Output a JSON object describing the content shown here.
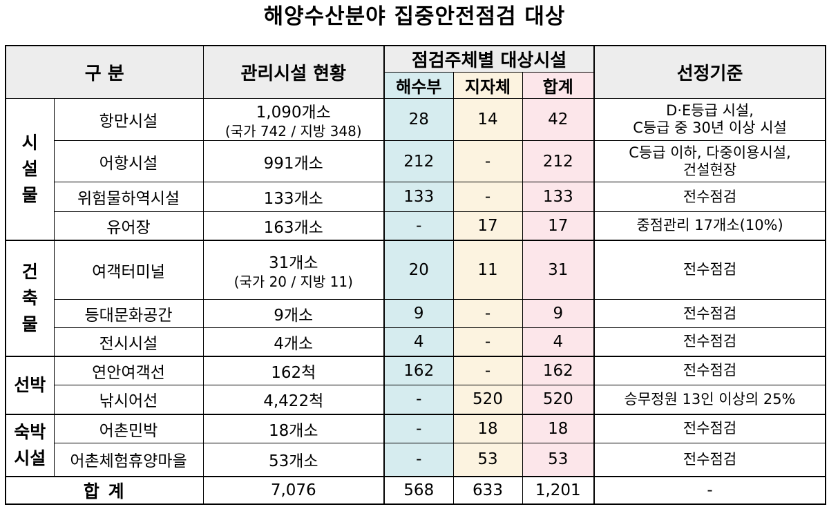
{
  "title": "해양수산분야 집중안전점검 대상",
  "header": {
    "category": "구 분",
    "facilities": "관리시설 현황",
    "inspector_group": "점검주체별 대상시설",
    "mof": "해수부",
    "local": "지자체",
    "sum": "합계",
    "criteria": "선정기준"
  },
  "groups": [
    {
      "label_lines": [
        "시",
        "설",
        "물"
      ],
      "rows": [
        {
          "name": "항만시설",
          "facility_main": "1,090개소",
          "facility_sub": "(국가 742 / 지방 348)",
          "mof": "28",
          "local": "14",
          "sum": "42",
          "criteria_lines": [
            "D·E등급 시설,",
            "C등급 중 30년 이상 시설"
          ]
        },
        {
          "name": "어항시설",
          "facility_main": "991개소",
          "facility_sub": "",
          "mof": "212",
          "local": "-",
          "sum": "212",
          "criteria_lines": [
            "C등급 이하, 다중이용시설,",
            "건설현장"
          ]
        },
        {
          "name": "위험물하역시설",
          "facility_main": "133개소",
          "facility_sub": "",
          "mof": "133",
          "local": "-",
          "sum": "133",
          "criteria_lines": [
            "전수점검"
          ]
        },
        {
          "name": "유어장",
          "facility_main": "163개소",
          "facility_sub": "",
          "mof": "-",
          "local": "17",
          "sum": "17",
          "criteria_lines": [
            "중점관리 17개소(10%)"
          ]
        }
      ]
    },
    {
      "label_lines": [
        "건",
        "축",
        "물"
      ],
      "rows": [
        {
          "name": "여객터미널",
          "facility_main": "31개소",
          "facility_sub": "(국가 20 / 지방 11)",
          "mof": "20",
          "local": "11",
          "sum": "31",
          "criteria_lines": [
            "전수점검"
          ]
        },
        {
          "name": "등대문화공간",
          "facility_main": "9개소",
          "facility_sub": "",
          "mof": "9",
          "local": "-",
          "sum": "9",
          "criteria_lines": [
            "전수점검"
          ]
        },
        {
          "name": "전시시설",
          "facility_main": "4개소",
          "facility_sub": "",
          "mof": "4",
          "local": "-",
          "sum": "4",
          "criteria_lines": [
            "전수점검"
          ]
        }
      ]
    },
    {
      "label_lines": [
        "선박"
      ],
      "rows": [
        {
          "name": "연안여객선",
          "facility_main": "162척",
          "facility_sub": "",
          "mof": "162",
          "local": "-",
          "sum": "162",
          "criteria_lines": [
            "전수점검"
          ]
        },
        {
          "name": "낚시어선",
          "facility_main": "4,422척",
          "facility_sub": "",
          "mof": "-",
          "local": "520",
          "sum": "520",
          "criteria_lines": [
            "승무정원 13인 이상의 25%"
          ]
        }
      ]
    },
    {
      "label_lines": [
        "숙박",
        "시설"
      ],
      "rows": [
        {
          "name": "어촌민박",
          "facility_main": "18개소",
          "facility_sub": "",
          "mof": "-",
          "local": "18",
          "sum": "18",
          "criteria_lines": [
            "전수점검"
          ]
        },
        {
          "name": "어촌체험휴양마을",
          "facility_main": "53개소",
          "facility_sub": "",
          "mof": "-",
          "local": "53",
          "sum": "53",
          "criteria_lines": [
            "전수점검"
          ]
        }
      ]
    }
  ],
  "total": {
    "label": "합 계",
    "facility": "7,076",
    "mof": "568",
    "local": "633",
    "sum": "1,201",
    "criteria": "-"
  }
}
